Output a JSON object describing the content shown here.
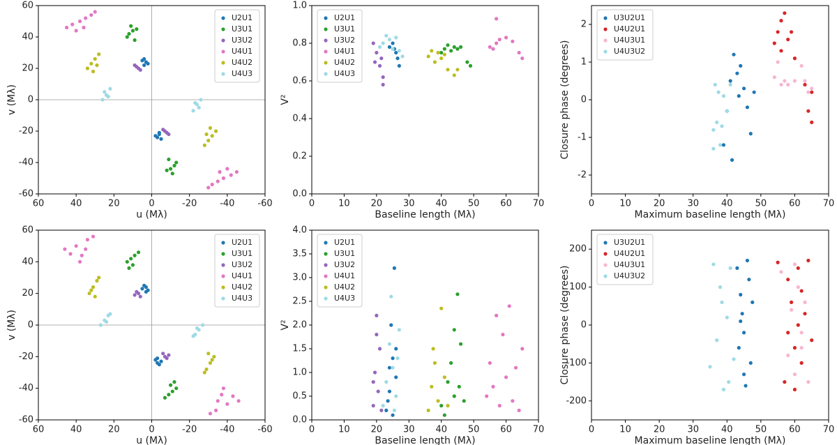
{
  "chart_data": [
    {
      "type": "scatter",
      "xlabel": "u (Mλ)",
      "ylabel": "v (Mλ)",
      "xlim": [
        60,
        -60
      ],
      "ylim": [
        -60,
        60
      ],
      "xticks": [
        60,
        40,
        20,
        0,
        -20,
        -40,
        -60
      ],
      "yticks": [
        -60,
        -40,
        -20,
        0,
        20,
        40,
        60
      ],
      "zero_lines": true,
      "legend": "upper right",
      "series": [
        {
          "name": "U2U1",
          "color": "#1f77b4",
          "x": [
            3,
            5,
            2,
            4,
            4,
            -3,
            -5,
            -2,
            -4,
            -4
          ],
          "y": [
            24,
            25,
            23,
            22,
            26,
            -24,
            -25,
            -23,
            -22,
            -21
          ]
        },
        {
          "name": "U3U1",
          "color": "#2ca02c",
          "x": [
            8,
            10,
            12,
            13,
            9,
            11,
            -8,
            -10,
            -12,
            -13,
            -9,
            -11
          ],
          "y": [
            45,
            44,
            42,
            40,
            38,
            47,
            -45,
            -44,
            -42,
            -40,
            -38,
            -47
          ]
        },
        {
          "name": "U3U2",
          "color": "#9467bd",
          "x": [
            6,
            7,
            8,
            9,
            -6,
            -7,
            -8,
            -9
          ],
          "y": [
            19,
            20,
            21,
            22,
            -19,
            -20,
            -21,
            -22
          ]
        },
        {
          "name": "U4U1",
          "color": "#e377c2",
          "x": [
            45,
            42,
            38,
            35,
            32,
            30,
            40,
            36,
            -45,
            -42,
            -38,
            -35,
            -32,
            -30,
            -40,
            -36
          ],
          "y": [
            46,
            48,
            50,
            52,
            54,
            56,
            44,
            46,
            -46,
            -48,
            -50,
            -52,
            -54,
            -56,
            -44,
            -46
          ]
        },
        {
          "name": "U4U2",
          "color": "#bcbd22",
          "x": [
            34,
            32,
            30,
            28,
            31,
            29,
            -34,
            -32,
            -30,
            -28,
            -31,
            -29
          ],
          "y": [
            20,
            23,
            26,
            29,
            18,
            22,
            -20,
            -23,
            -26,
            -29,
            -18,
            -22
          ]
        },
        {
          "name": "U4U3",
          "color": "#9edae5",
          "x": [
            26,
            24,
            22,
            25,
            23,
            -26,
            -24,
            -22,
            -25,
            -23
          ],
          "y": [
            0,
            3,
            7,
            5,
            2,
            0,
            -3,
            -7,
            -5,
            -2
          ]
        }
      ]
    },
    {
      "type": "scatter",
      "xlabel": "Baseline length (Mλ)",
      "ylabel": "V²",
      "xlim": [
        0,
        70
      ],
      "ylim": [
        0,
        1
      ],
      "xticks": [
        0,
        10,
        20,
        30,
        40,
        50,
        60,
        70
      ],
      "yticks": [
        {
          "value": 0,
          "label": "0.0"
        },
        0.2,
        0.4,
        0.6,
        0.8,
        {
          "value": 1,
          "label": "1.0"
        }
      ],
      "legend": "upper left",
      "series": [
        {
          "name": "U2U1",
          "color": "#1f77b4",
          "x": [
            24,
            25,
            26,
            27,
            26.5,
            25.5
          ],
          "y": [
            0.78,
            0.8,
            0.75,
            0.68,
            0.72,
            0.77
          ]
        },
        {
          "name": "U3U1",
          "color": "#2ca02c",
          "x": [
            40,
            41,
            42,
            43,
            44,
            45,
            46,
            48,
            49
          ],
          "y": [
            0.75,
            0.77,
            0.79,
            0.76,
            0.78,
            0.77,
            0.78,
            0.7,
            0.68
          ]
        },
        {
          "name": "U3U2",
          "color": "#9467bd",
          "x": [
            19,
            19.5,
            20,
            21,
            22,
            22,
            21.5
          ],
          "y": [
            0.8,
            0.7,
            0.75,
            0.68,
            0.62,
            0.58,
            0.72
          ]
        },
        {
          "name": "U4U1",
          "color": "#e377c2",
          "x": [
            55,
            56,
            57,
            58,
            60,
            62,
            64,
            65,
            57
          ],
          "y": [
            0.78,
            0.77,
            0.8,
            0.82,
            0.83,
            0.81,
            0.75,
            0.72,
            0.93
          ]
        },
        {
          "name": "U4U2",
          "color": "#bcbd22",
          "x": [
            36,
            37,
            38,
            39,
            40,
            42,
            44,
            45,
            41
          ],
          "y": [
            0.73,
            0.76,
            0.7,
            0.75,
            0.72,
            0.66,
            0.63,
            0.66,
            0.74
          ]
        },
        {
          "name": "U4U3",
          "color": "#9edae5",
          "x": [
            21,
            22,
            23,
            24,
            25,
            26,
            27,
            28
          ],
          "y": [
            0.78,
            0.8,
            0.84,
            0.82,
            0.77,
            0.83,
            0.76,
            0.73
          ]
        }
      ]
    },
    {
      "type": "scatter",
      "xlabel": "Maximum baseline length (Mλ)",
      "ylabel": "Closure phase (degrees)",
      "xlim": [
        0,
        70
      ],
      "ylim": [
        -2.5,
        2.5
      ],
      "xticks": [
        0,
        10,
        20,
        30,
        40,
        50,
        60,
        70
      ],
      "yticks": [
        -2,
        -1,
        0,
        1,
        2
      ],
      "legend": "upper left",
      "series": [
        {
          "name": "U3U2U1",
          "color": "#1f77b4",
          "x": [
            39,
            40,
            41,
            42,
            43,
            44,
            45,
            46,
            47,
            48,
            41.5,
            43.5
          ],
          "y": [
            -1.2,
            -0.3,
            0.5,
            1.2,
            0.7,
            0.9,
            0.3,
            -0.2,
            -0.9,
            0.2,
            -1.6,
            0.1
          ]
        },
        {
          "name": "U4U2U1",
          "color": "#d62728",
          "x": [
            54,
            55,
            56,
            57,
            58,
            59,
            60,
            63,
            64,
            65,
            65,
            56
          ],
          "y": [
            1.5,
            1.8,
            2.1,
            2.3,
            1.6,
            1.8,
            1.1,
            0.4,
            -0.3,
            -0.6,
            0.2,
            1.3
          ]
        },
        {
          "name": "U4U3U1",
          "color": "#f7b6d2",
          "x": [
            54,
            55,
            57,
            58,
            60,
            62,
            63,
            64,
            65,
            56
          ],
          "y": [
            0.6,
            1.0,
            0.5,
            0.4,
            0.5,
            0.9,
            0.5,
            0.2,
            0.3,
            0.4
          ]
        },
        {
          "name": "U4U3U2",
          "color": "#9edae5",
          "x": [
            36,
            36.5,
            37,
            37.5,
            38,
            38.5,
            39,
            40,
            41,
            36
          ],
          "y": [
            -0.8,
            0.4,
            -0.6,
            0.2,
            -1.2,
            -0.7,
            0.1,
            -0.3,
            0.4,
            -1.3
          ]
        }
      ]
    },
    {
      "type": "scatter",
      "xlabel": "u (Mλ)",
      "ylabel": "v (Mλ)",
      "xlim": [
        60,
        -60
      ],
      "ylim": [
        -60,
        60
      ],
      "xticks": [
        60,
        40,
        20,
        0,
        -20,
        -40,
        -60
      ],
      "yticks": [
        -60,
        -40,
        -20,
        0,
        20,
        40,
        60
      ],
      "zero_lines": true,
      "legend": "upper right",
      "series": [
        {
          "name": "U2U1",
          "color": "#1f77b4",
          "x": [
            2,
            3,
            4,
            5,
            3,
            -2,
            -3,
            -4,
            -5,
            -3
          ],
          "y": [
            22,
            24,
            25,
            23,
            21,
            -22,
            -24,
            -25,
            -23,
            -21
          ]
        },
        {
          "name": "U3U1",
          "color": "#2ca02c",
          "x": [
            7,
            9,
            11,
            13,
            10,
            12,
            -7,
            -9,
            -11,
            -13,
            -10,
            -12
          ],
          "y": [
            46,
            44,
            42,
            40,
            38,
            36,
            -46,
            -44,
            -42,
            -40,
            -38,
            -36
          ]
        },
        {
          "name": "U3U2",
          "color": "#9467bd",
          "x": [
            6,
            7,
            8,
            9,
            -6,
            -7,
            -8,
            -9
          ],
          "y": [
            18,
            20,
            21,
            19,
            -18,
            -20,
            -21,
            -19
          ]
        },
        {
          "name": "U4U1",
          "color": "#e377c2",
          "x": [
            46,
            43,
            40,
            37,
            34,
            31,
            38,
            35,
            -46,
            -43,
            -40,
            -37,
            -34,
            -31,
            -38,
            -35
          ],
          "y": [
            48,
            45,
            50,
            44,
            54,
            56,
            40,
            48,
            -48,
            -45,
            -50,
            -44,
            -54,
            -56,
            -40,
            -48
          ]
        },
        {
          "name": "U4U2",
          "color": "#bcbd22",
          "x": [
            33,
            31,
            29,
            28,
            30,
            32,
            -33,
            -31,
            -29,
            -28,
            -30,
            -32
          ],
          "y": [
            20,
            24,
            28,
            30,
            18,
            22,
            -20,
            -24,
            -28,
            -30,
            -18,
            -22
          ]
        },
        {
          "name": "U4U3",
          "color": "#9edae5",
          "x": [
            27,
            25,
            23,
            22,
            24,
            -27,
            -25,
            -23,
            -22,
            -24
          ],
          "y": [
            0,
            3,
            6,
            7,
            2,
            0,
            -3,
            -6,
            -7,
            -2
          ]
        }
      ]
    },
    {
      "type": "scatter",
      "xlabel": "Baseline length (Mλ)",
      "ylabel": "V²",
      "xlim": [
        0,
        70
      ],
      "ylim": [
        0,
        4
      ],
      "xticks": [
        0,
        10,
        20,
        30,
        40,
        50,
        60,
        70
      ],
      "yticks": [
        {
          "value": 0,
          "label": "0.0"
        },
        0.5,
        {
          "value": 1,
          "label": "1.0"
        },
        1.5,
        {
          "value": 2,
          "label": "2.0"
        },
        2.5,
        {
          "value": 3,
          "label": "3.0"
        },
        3.5,
        {
          "value": 4,
          "label": "4.0"
        }
      ],
      "legend": "upper left",
      "series": [
        {
          "name": "U2U1",
          "color": "#1f77b4",
          "x": [
            23,
            24,
            25,
            26,
            24.5,
            25.5,
            23.5,
            26,
            25,
            24
          ],
          "y": [
            0.2,
            0.6,
            1.3,
            0.9,
            2.0,
            3.2,
            0.4,
            1.5,
            0.1,
            1.1
          ]
        },
        {
          "name": "U3U1",
          "color": "#2ca02c",
          "x": [
            40,
            42,
            43,
            44,
            45,
            46,
            47,
            41,
            44,
            45.5
          ],
          "y": [
            0.3,
            0.8,
            1.2,
            0.5,
            2.65,
            1.6,
            0.4,
            0.1,
            1.9,
            0.7
          ]
        },
        {
          "name": "U3U2",
          "color": "#9467bd",
          "x": [
            19,
            19.5,
            20,
            20.5,
            21,
            21.5,
            20,
            19
          ],
          "y": [
            0.3,
            1.0,
            2.2,
            0.6,
            1.5,
            0.2,
            1.8,
            0.8
          ]
        },
        {
          "name": "U4U1",
          "color": "#e377c2",
          "x": [
            54,
            55,
            57,
            58,
            59,
            60,
            61,
            62,
            63,
            64,
            65,
            56
          ],
          "y": [
            0.5,
            1.2,
            2.2,
            0.3,
            1.8,
            0.9,
            2.4,
            0.4,
            1.1,
            0.2,
            1.5,
            0.7
          ]
        },
        {
          "name": "U4U2",
          "color": "#bcbd22",
          "x": [
            36,
            37,
            38,
            39,
            40,
            41,
            42,
            37.5
          ],
          "y": [
            0.2,
            0.7,
            1.2,
            0.4,
            2.35,
            0.9,
            0.3,
            1.5
          ]
        },
        {
          "name": "U4U3",
          "color": "#9edae5",
          "x": [
            22,
            23,
            24,
            25,
            26,
            27,
            24.5,
            25.5,
            26.5
          ],
          "y": [
            0.3,
            0.8,
            1.6,
            1.1,
            0.5,
            1.9,
            2.6,
            0.2,
            1.3
          ]
        }
      ]
    },
    {
      "type": "scatter",
      "xlabel": "Maximum baseline length (Mλ)",
      "ylabel": "Closure phase (degrees)",
      "xlim": [
        0,
        70
      ],
      "ylim": [
        -250,
        250
      ],
      "xticks": [
        0,
        10,
        20,
        30,
        40,
        50,
        60,
        70
      ],
      "yticks": [
        -200,
        -100,
        0,
        100,
        200
      ],
      "legend": "upper left",
      "series": [
        {
          "name": "U3U2U1",
          "color": "#1f77b4",
          "x": [
            43,
            44,
            45,
            46,
            47,
            44.5,
            45.5,
            46.5,
            43.5,
            47.5,
            45,
            44
          ],
          "y": [
            150,
            80,
            -20,
            170,
            -100,
            30,
            -160,
            120,
            -60,
            60,
            -130,
            10
          ]
        },
        {
          "name": "U4U2U1",
          "color": "#d62728",
          "x": [
            55,
            57,
            58,
            59,
            60,
            61,
            62,
            63,
            64,
            65,
            60,
            62,
            58,
            61
          ],
          "y": [
            165,
            -150,
            120,
            60,
            -60,
            150,
            -100,
            30,
            170,
            -40,
            -170,
            90,
            -20,
            0
          ]
        },
        {
          "name": "U4U3U1",
          "color": "#f7b6d2",
          "x": [
            56,
            58,
            59,
            60,
            61,
            62,
            63,
            64,
            60,
            62
          ],
          "y": [
            140,
            -80,
            40,
            -130,
            100,
            -20,
            60,
            -150,
            160,
            -60
          ]
        },
        {
          "name": "U4U3U2",
          "color": "#9edae5",
          "x": [
            35,
            36,
            37,
            38,
            39,
            40,
            41,
            42,
            38.5,
            40.5
          ],
          "y": [
            -110,
            160,
            -40,
            100,
            -170,
            20,
            150,
            -90,
            60,
            -150
          ]
        }
      ]
    }
  ]
}
